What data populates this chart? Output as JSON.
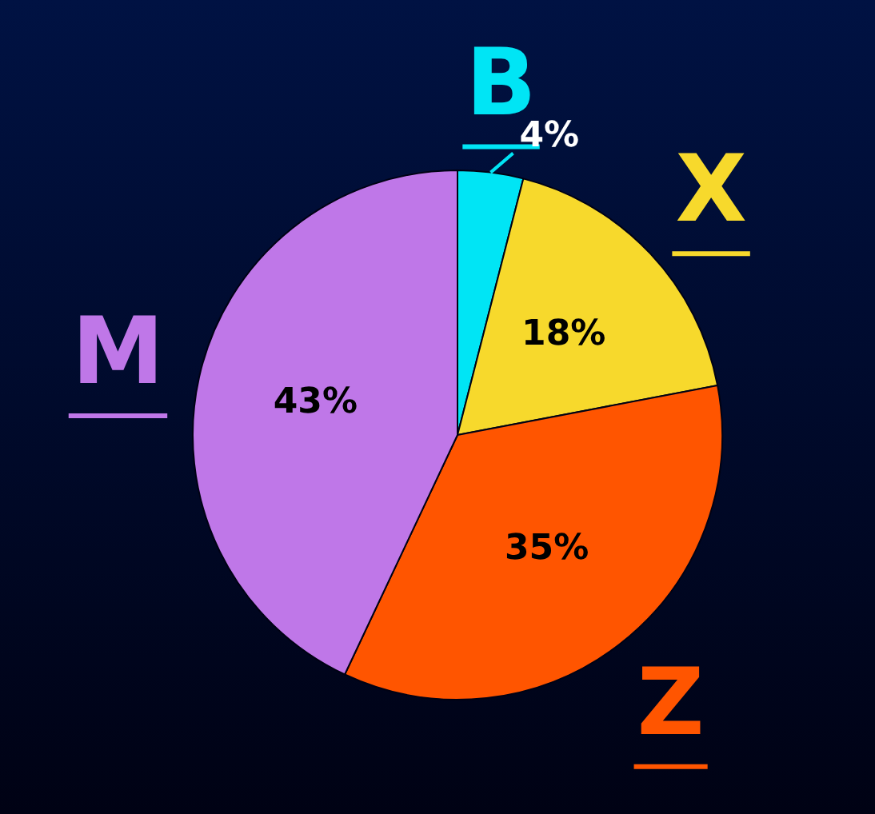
{
  "chart_data": {
    "type": "pie",
    "categories": [
      "B",
      "X",
      "Z",
      "M"
    ],
    "values": [
      4,
      18,
      35,
      43
    ],
    "colors": [
      "#00e5f5",
      "#f7d92c",
      "#ff5500",
      "#bf77e8"
    ],
    "value_labels": [
      "4%",
      "18%",
      "35%",
      "43%"
    ],
    "legend": false
  }
}
